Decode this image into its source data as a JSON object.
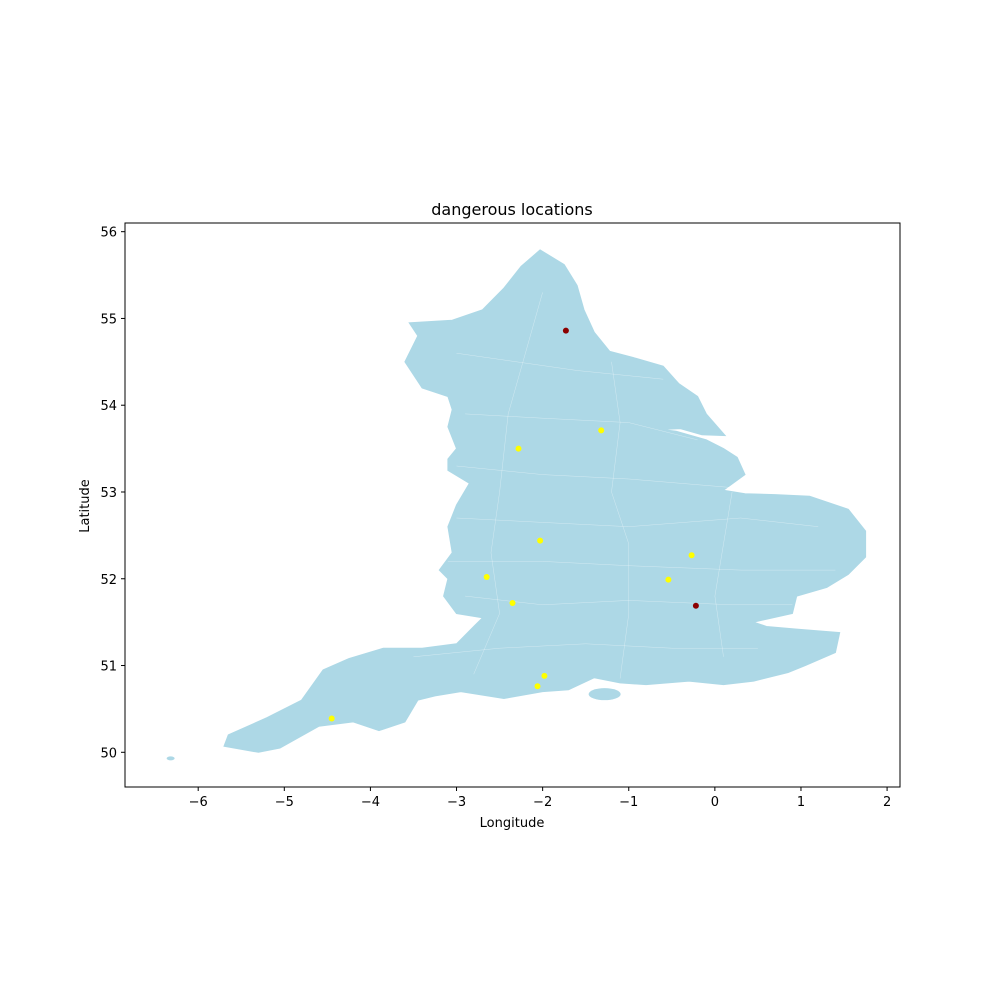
{
  "chart_data": {
    "type": "scatter",
    "title": "dangerous locations",
    "xlabel": "Longitude",
    "ylabel": "Latitude",
    "xlim": [
      -6.85,
      2.15
    ],
    "ylim": [
      49.6,
      56.1
    ],
    "xticks": [
      -6,
      -5,
      -4,
      -3,
      -2,
      -1,
      0,
      1,
      2
    ],
    "yticks": [
      50,
      51,
      52,
      53,
      54,
      55,
      56
    ],
    "xtick_labels": [
      "−6",
      "−5",
      "−4",
      "−3",
      "−2",
      "−1",
      "0",
      "1",
      "2"
    ],
    "ytick_labels": [
      "50",
      "51",
      "52",
      "53",
      "54",
      "55",
      "56"
    ],
    "grid": false,
    "legend": "none",
    "basemap": {
      "region": "England",
      "fill_color": "#add8e6",
      "boundary_color": "#ffffff"
    },
    "series": [
      {
        "color": "#ffff00",
        "points": [
          {
            "x": -1.32,
            "y": 53.71
          },
          {
            "x": -2.28,
            "y": 53.5
          },
          {
            "x": -2.03,
            "y": 52.44
          },
          {
            "x": -0.27,
            "y": 52.27
          },
          {
            "x": -2.65,
            "y": 52.02
          },
          {
            "x": -0.54,
            "y": 51.99
          },
          {
            "x": -2.35,
            "y": 51.72
          },
          {
            "x": -1.98,
            "y": 50.88
          },
          {
            "x": -2.06,
            "y": 50.76
          },
          {
            "x": -4.45,
            "y": 50.39
          }
        ]
      },
      {
        "color": "#8b0000",
        "points": [
          {
            "x": -1.73,
            "y": 54.86
          },
          {
            "x": -0.22,
            "y": 51.69
          }
        ]
      }
    ]
  }
}
